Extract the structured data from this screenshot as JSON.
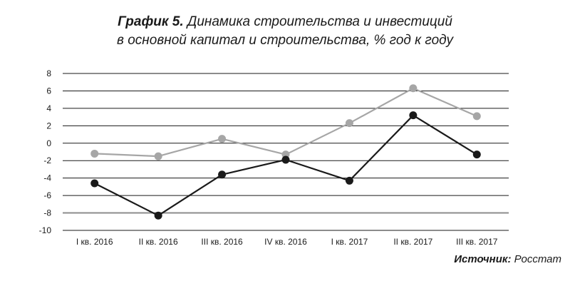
{
  "title": {
    "prefix": "График 5.",
    "line1": "Динамика строительства и инвестиций",
    "line2": "в основной капитал и строительства, % год к году"
  },
  "source": {
    "label": "Источник:",
    "value": "Росстат"
  },
  "chart_data": {
    "type": "line",
    "categories": [
      "I кв. 2016",
      "II кв. 2016",
      "III кв. 2016",
      "IV кв. 2016",
      "I кв. 2017",
      "II кв. 2017",
      "III кв. 2017"
    ],
    "series": [
      {
        "values": [
          -1.2,
          -1.5,
          0.5,
          -1.3,
          2.3,
          6.3,
          3.1
        ],
        "color": "#a6a6a6"
      },
      {
        "values": [
          -4.6,
          -8.3,
          -3.6,
          -1.9,
          -4.3,
          3.2,
          -1.3
        ],
        "color": "#1a1a1a"
      }
    ],
    "ylim": [
      -10,
      8
    ],
    "yticks": [
      8,
      6,
      4,
      2,
      0,
      -2,
      -4,
      -6,
      -8,
      -10
    ],
    "grid": true,
    "highlighted_gridline": -8
  }
}
